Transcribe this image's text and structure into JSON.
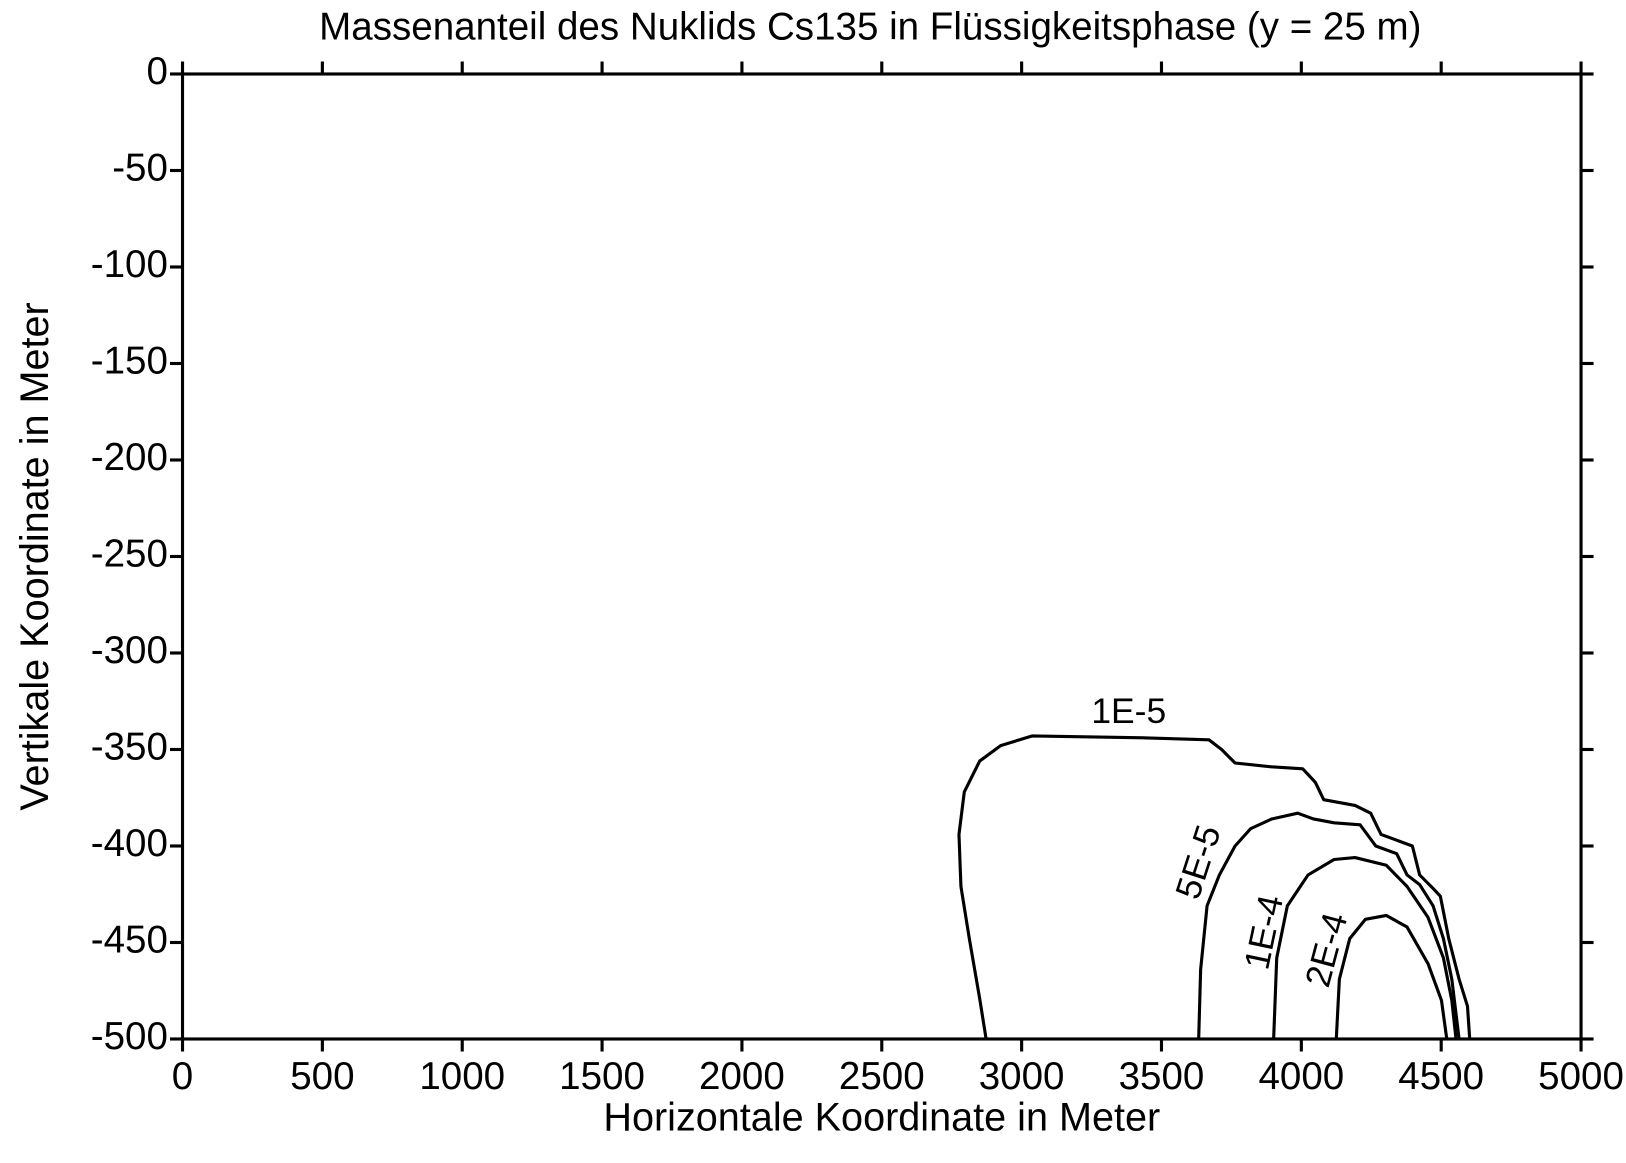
{
  "chart_data": {
    "type": "contour",
    "title": "Massenanteil des Nuklids Cs135 in Flüssigkeitsphase (y = 25 m)",
    "x_label": "Horizontale Koordinate in Meter",
    "y_label": "Vertikale Koordinate in Meter",
    "xlim": [
      0,
      5000
    ],
    "ylim": [
      -500,
      0
    ],
    "xticks": [
      0,
      500,
      1000,
      1500,
      2000,
      2500,
      3000,
      3500,
      4000,
      4500,
      5000
    ],
    "yticks": [
      0,
      -50,
      -100,
      -150,
      -200,
      -250,
      -300,
      -350,
      -400,
      -450,
      -500
    ],
    "color": "#000000",
    "series": [
      {
        "name": "1E-5",
        "x": [
          2873,
          2850,
          2813,
          2783,
          2776,
          2795,
          2850,
          2925,
          3037,
          3447,
          3670,
          3715,
          3763,
          3894,
          4005,
          4050,
          4080,
          4192,
          4248,
          4285,
          4341,
          4397,
          4423,
          4471,
          4497,
          4527,
          4564,
          4594,
          4602
        ],
        "y": [
          -500,
          -479,
          -448,
          -421,
          -394,
          -372,
          -356,
          -348,
          -343,
          -344,
          -345,
          -350,
          -357,
          -359,
          -360,
          -367,
          -376,
          -379,
          -383,
          -394,
          -397,
          -400,
          -415,
          -422,
          -426,
          -448,
          -469,
          -483,
          -500
        ]
      },
      {
        "name": "5E-5",
        "x": [
          3633,
          3640,
          3663,
          3707,
          3763,
          3819,
          3894,
          3987,
          4043,
          4117,
          4210,
          4266,
          4341,
          4378,
          4423,
          4471,
          4508,
          4538,
          4564
        ],
        "y": [
          -500,
          -464,
          -431,
          -415,
          -400,
          -391,
          -386,
          -383,
          -386,
          -388,
          -389,
          -400,
          -404,
          -415,
          -420,
          -431,
          -448,
          -469,
          -500
        ]
      },
      {
        "name": "1E-4",
        "x": [
          3901,
          3912,
          3950,
          4024,
          4117,
          4192,
          4304,
          4378,
          4453,
          4508,
          4538,
          4553
        ],
        "y": [
          -500,
          -458,
          -431,
          -415,
          -407,
          -406,
          -410,
          -421,
          -437,
          -458,
          -480,
          -500
        ]
      },
      {
        "name": "2E-4",
        "x": [
          4125,
          4136,
          4173,
          4229,
          4304,
          4378,
          4453,
          4501,
          4520
        ],
        "y": [
          -500,
          -469,
          -448,
          -438,
          -436,
          -442,
          -461,
          -480,
          -500
        ]
      }
    ]
  }
}
